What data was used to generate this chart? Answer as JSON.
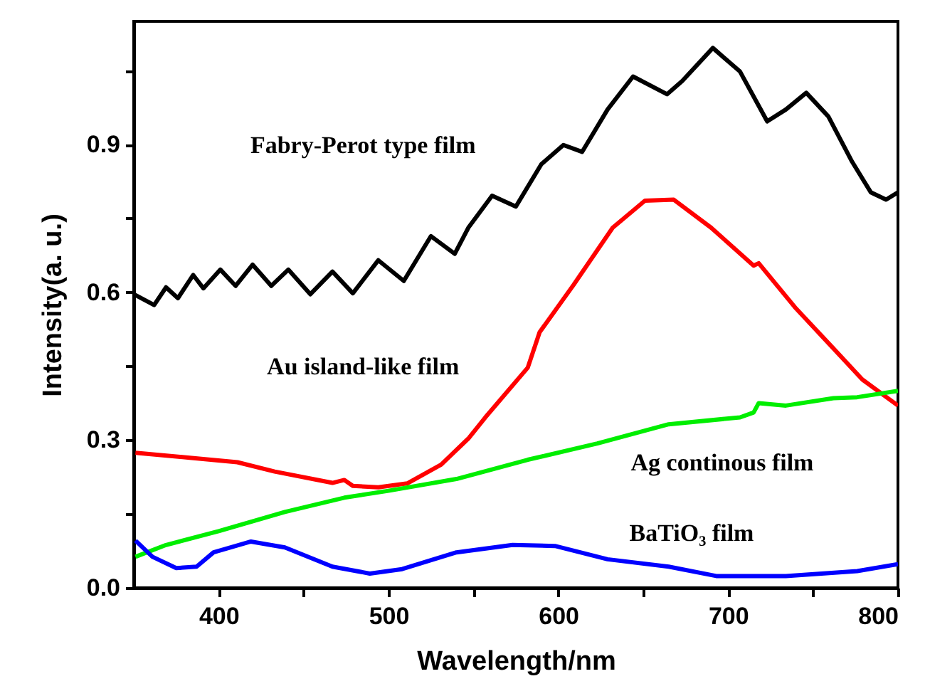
{
  "chart_data": {
    "type": "line",
    "xlabel": "Wavelength/nm",
    "ylabel": "Intensity(a. u.)",
    "xlim": [
      350,
      800
    ],
    "ylim": [
      0,
      1.15
    ],
    "xticks": [
      400,
      {
        "value": 450,
        "label": null
      },
      500,
      {
        "value": 550,
        "label": null
      },
      600,
      {
        "value": 650,
        "label": null
      },
      700,
      {
        "value": 750,
        "label": null
      },
      800
    ],
    "yticks": [
      {
        "value": 0,
        "label": "0.0"
      },
      {
        "value": 0.15,
        "label": null
      },
      0.3,
      {
        "value": 0.45,
        "label": null
      },
      0.6,
      {
        "value": 0.75,
        "label": null
      },
      0.9,
      {
        "value": 1.05,
        "label": null
      }
    ],
    "grid": false,
    "marker": "none",
    "line_style": "solid",
    "series": [
      {
        "color": "#000000",
        "x": [
          350,
          362,
          369,
          376,
          385,
          391,
          401,
          410,
          420,
          431,
          441,
          454,
          467,
          479,
          494,
          509,
          525,
          539,
          547,
          561,
          575,
          590,
          603,
          614,
          629,
          644,
          664,
          673,
          691,
          707,
          723,
          734,
          746,
          759,
          773,
          784,
          793,
          800
        ],
        "values": [
          0.596,
          0.574,
          0.61,
          0.588,
          0.635,
          0.608,
          0.646,
          0.613,
          0.656,
          0.613,
          0.646,
          0.596,
          0.642,
          0.598,
          0.665,
          0.623,
          0.714,
          0.678,
          0.731,
          0.796,
          0.774,
          0.86,
          0.899,
          0.885,
          0.971,
          1.038,
          1.002,
          1.029,
          1.096,
          1.048,
          0.947,
          0.971,
          1.005,
          0.957,
          0.865,
          0.803,
          0.788,
          0.803
        ]
      },
      {
        "color": "#ff0000",
        "x": [
          351,
          383,
          411,
          433,
          467,
          474,
          479,
          494,
          511,
          531,
          547,
          557,
          582,
          589,
          609,
          632,
          651,
          668,
          690,
          715,
          718,
          740,
          762,
          779,
          800
        ],
        "values": [
          0.274,
          0.264,
          0.255,
          0.236,
          0.213,
          0.219,
          0.207,
          0.204,
          0.212,
          0.25,
          0.303,
          0.346,
          0.447,
          0.519,
          0.615,
          0.731,
          0.786,
          0.788,
          0.731,
          0.654,
          0.659,
          0.567,
          0.486,
          0.423,
          0.37
        ]
      },
      {
        "color": "#00ee00",
        "x": [
          351,
          369,
          400,
          439,
          474,
          500,
          540,
          582,
          623,
          665,
          707,
          715,
          718,
          734,
          762,
          776,
          800
        ],
        "values": [
          0.063,
          0.087,
          0.115,
          0.154,
          0.183,
          0.197,
          0.221,
          0.26,
          0.293,
          0.332,
          0.346,
          0.356,
          0.375,
          0.37,
          0.385,
          0.387,
          0.4
        ]
      },
      {
        "color": "#0000ff",
        "x": [
          351,
          361,
          375,
          387,
          397,
          419,
          439,
          467,
          489,
          508,
          540,
          573,
          598,
          629,
          665,
          693,
          734,
          776,
          800
        ],
        "values": [
          0.096,
          0.063,
          0.04,
          0.043,
          0.072,
          0.094,
          0.082,
          0.043,
          0.029,
          0.038,
          0.072,
          0.087,
          0.085,
          0.058,
          0.043,
          0.024,
          0.024,
          0.034,
          0.048
        ]
      }
    ],
    "annotations": [
      "Fabry-Perot type film",
      "Au island-like film",
      "Ag continous film",
      "BaTiO₃ film"
    ]
  }
}
